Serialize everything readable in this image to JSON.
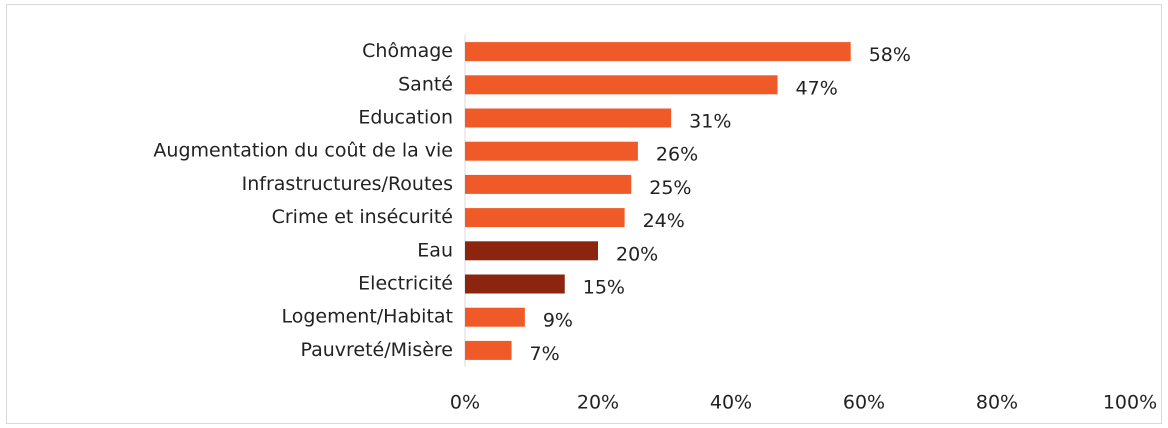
{
  "chart_data": {
    "type": "bar",
    "orientation": "horizontal",
    "categories": [
      "Chômage",
      "Santé",
      "Education",
      "Augmentation du coût de la vie",
      "Infrastructures/Routes",
      "Crime et insécurité",
      "Eau",
      "Electricité",
      "Logement/Habitat",
      "Pauvreté/Misère"
    ],
    "values": [
      58,
      47,
      31,
      26,
      25,
      24,
      20,
      15,
      9,
      7
    ],
    "value_labels": [
      "58%",
      "47%",
      "31%",
      "26%",
      "25%",
      "24%",
      "20%",
      "15%",
      "9%",
      "7%"
    ],
    "colors": [
      "#f05a28",
      "#f05a28",
      "#f05a28",
      "#f05a28",
      "#f05a28",
      "#f05a28",
      "#8b2510",
      "#8b2510",
      "#f05a28",
      "#f05a28"
    ],
    "xlim": [
      0,
      100
    ],
    "xticks": [
      {
        "value": 0,
        "label": "0%"
      },
      {
        "value": 20,
        "label": "20%"
      },
      {
        "value": 40,
        "label": "40%"
      },
      {
        "value": 60,
        "label": "60%"
      },
      {
        "value": 80,
        "label": "80%"
      },
      {
        "value": 100,
        "label": "100%"
      }
    ],
    "grid": false
  }
}
